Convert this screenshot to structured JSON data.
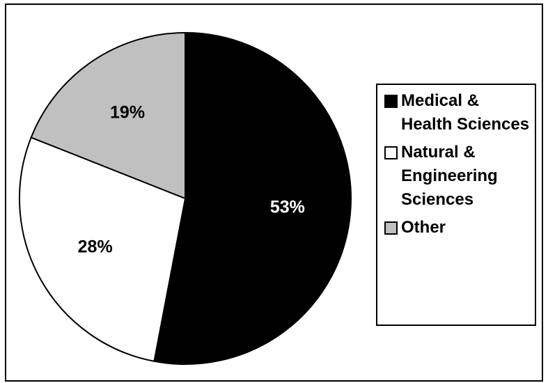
{
  "chart_data": {
    "type": "pie",
    "categories": [
      "Medical & Health Sciences",
      "Natural & Engineering Sciences",
      "Other"
    ],
    "values": [
      53,
      28,
      19
    ],
    "value_labels": [
      "53%",
      "28%",
      "19%"
    ],
    "colors": [
      "#000000",
      "#ffffff",
      "#c0c0c0"
    ],
    "legend": "right"
  }
}
